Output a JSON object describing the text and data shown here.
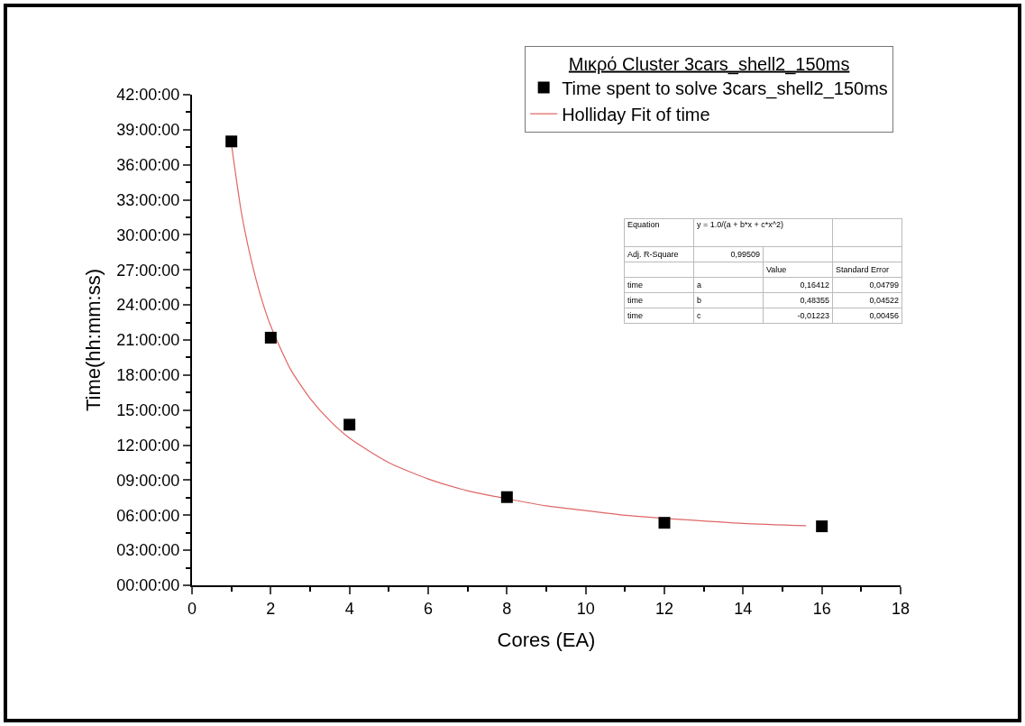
{
  "chart_data": {
    "type": "scatter",
    "xlabel": "Cores (EA)",
    "ylabel": "Time(hh:mm:ss)",
    "legend_title": "Μικρό Cluster 3cars_shell2_150ms",
    "legend": "top right",
    "grid": false,
    "xlim": [
      0,
      18
    ],
    "xticks": [
      0,
      2,
      4,
      6,
      8,
      10,
      12,
      14,
      16,
      18
    ],
    "ylim": [
      0,
      42
    ],
    "yticks": [
      {
        "value": 0,
        "label": "00:00:00"
      },
      {
        "value": 3,
        "label": "03:00:00"
      },
      {
        "value": 6,
        "label": "06:00:00"
      },
      {
        "value": 9,
        "label": "09:00:00"
      },
      {
        "value": 12,
        "label": "12:00:00"
      },
      {
        "value": 15,
        "label": "15:00:00"
      },
      {
        "value": 18,
        "label": "18:00:00"
      },
      {
        "value": 21,
        "label": "21:00:00"
      },
      {
        "value": 24,
        "label": "24:00:00"
      },
      {
        "value": 27,
        "label": "27:00:00"
      },
      {
        "value": 30,
        "label": "30:00:00"
      },
      {
        "value": 33,
        "label": "33:00:00"
      },
      {
        "value": 36,
        "label": "36:00:00"
      },
      {
        "value": 39,
        "label": "39:00:00"
      },
      {
        "value": 42,
        "label": "42:00:00"
      }
    ],
    "series": [
      {
        "name": "Time spent to solve 3cars_shell2_150ms",
        "marker": "square",
        "color": "#000000",
        "x": [
          1,
          2,
          4,
          8,
          12,
          16
        ],
        "values": [
          38,
          21.2,
          13.75,
          7.55,
          5.35,
          5.05
        ]
      },
      {
        "name": "Holliday Fit of time",
        "type": "line",
        "marker": "none",
        "line_style": "solid",
        "color": "#e06666",
        "x": [
          1,
          1.25,
          1.5,
          1.75,
          2,
          2.5,
          3,
          3.5,
          4,
          5,
          6,
          7,
          9,
          10,
          11,
          14,
          15.6
        ],
        "values": [
          37.8,
          32,
          27.9,
          24.7,
          22.2,
          18.5,
          16,
          14.1,
          12.6,
          10.5,
          9.1,
          8.1,
          6.8,
          6.4,
          6,
          5.3,
          5.1
        ]
      }
    ],
    "annotations": [
      "Equation",
      "y = 1.0/(a + b*x + c*x^2)",
      "Adj. R-Square",
      "0,99509",
      "Value",
      "Standard Error",
      "time",
      "a",
      "0,16412",
      "0,04799",
      "time",
      "b",
      "0,48355",
      "0,04522",
      "time",
      "c",
      "-0,01223",
      "0,00456"
    ]
  }
}
